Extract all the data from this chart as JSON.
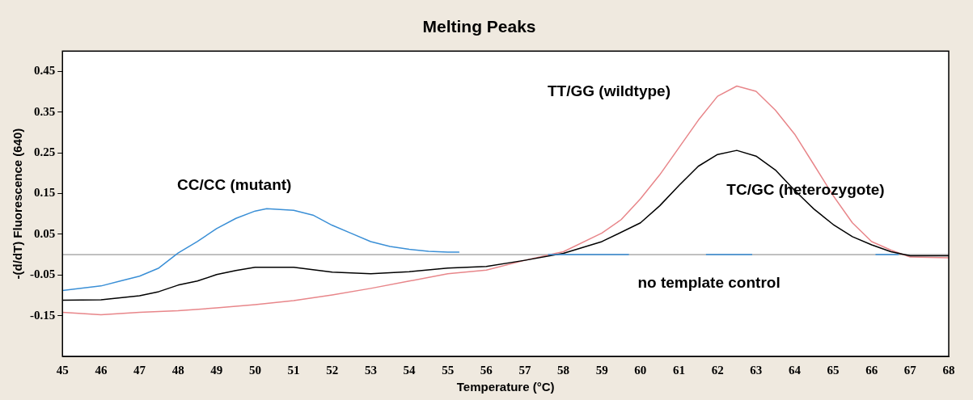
{
  "chart_data": {
    "type": "line",
    "title": "Melting Peaks",
    "xlabel": "Temperature (°C)",
    "ylabel": "-(d/dT) Fluorescence (640)",
    "xlim": [
      45,
      68
    ],
    "xticks": [
      45,
      46,
      47,
      48,
      49,
      50,
      51,
      52,
      53,
      54,
      55,
      56,
      57,
      58,
      59,
      60,
      61,
      62,
      63,
      64,
      65,
      66,
      67,
      68
    ],
    "ylim": [
      -0.25,
      0.5
    ],
    "yticks": [
      {
        "value": 0.45,
        "label": "0.45"
      },
      {
        "value": 0.35,
        "label": "0.35"
      },
      {
        "value": 0.25,
        "label": "0.25"
      },
      {
        "value": 0.15,
        "label": "0.15"
      },
      {
        "value": 0.05,
        "label": "0.05"
      },
      {
        "value": -0.05,
        "label": "-0.05"
      },
      {
        "value": -0.15,
        "label": "-0.15"
      }
    ],
    "grid": false,
    "legend": false,
    "marker": "none",
    "line_style": "solid",
    "ref_lines": [
      {
        "axis": "y",
        "value": 0,
        "color": "#808080"
      }
    ],
    "series": [
      {
        "name": "CC/CC (mutant)",
        "color": "#3a8fd6",
        "x": [
          45,
          46,
          46.5,
          47,
          47.5,
          48,
          48.5,
          49,
          49.5,
          50,
          50.3,
          51,
          51.5,
          52,
          52.5,
          53,
          53.5,
          54,
          54.5,
          55,
          55.3
        ],
        "values": [
          -0.088,
          -0.077,
          -0.065,
          -0.053,
          -0.033,
          0.004,
          0.032,
          0.064,
          0.089,
          0.107,
          0.113,
          0.109,
          0.097,
          0.072,
          0.052,
          0.032,
          0.02,
          0.013,
          0.008,
          0.006,
          0.006
        ]
      },
      {
        "name": "no template control",
        "color": "#3a8fd6",
        "x": [
          57.6,
          59.7,
          60.5,
          61.7,
          62.9,
          64,
          66.1,
          66.7
        ],
        "values": [
          0,
          0,
          null,
          0,
          0,
          null,
          0,
          0
        ]
      },
      {
        "name": "TC/GC (heterozygote)",
        "color": "#000000",
        "x": [
          45,
          46,
          47,
          47.5,
          48,
          48.5,
          49,
          49.5,
          50,
          51,
          52,
          53,
          54,
          55,
          56,
          57,
          58,
          59,
          60,
          60.5,
          61,
          61.5,
          62,
          62.5,
          63,
          63.5,
          64,
          64.5,
          65,
          65.5,
          66,
          66.5,
          67,
          68
        ],
        "values": [
          -0.112,
          -0.111,
          -0.101,
          -0.091,
          -0.075,
          -0.065,
          -0.049,
          -0.039,
          -0.031,
          -0.031,
          -0.043,
          -0.047,
          -0.042,
          -0.033,
          -0.029,
          -0.014,
          0.003,
          0.032,
          0.078,
          0.12,
          0.17,
          0.217,
          0.246,
          0.256,
          0.242,
          0.208,
          0.158,
          0.112,
          0.074,
          0.044,
          0.024,
          0.007,
          -0.003,
          -0.003
        ]
      },
      {
        "name": "TT/GG (wildtype)",
        "color": "#e8868a",
        "x": [
          45,
          46,
          47,
          48,
          49,
          50,
          51,
          52,
          53,
          54,
          55,
          56,
          57,
          57.8,
          58,
          59,
          59.5,
          60,
          60.5,
          61,
          61.5,
          62,
          62.5,
          63,
          63.5,
          64,
          64.5,
          65,
          65.5,
          66,
          66.5,
          67,
          68
        ],
        "values": [
          -0.142,
          -0.148,
          -0.142,
          -0.138,
          -0.131,
          -0.123,
          -0.113,
          -0.099,
          -0.083,
          -0.065,
          -0.047,
          -0.038,
          -0.014,
          0.003,
          0.007,
          0.053,
          0.086,
          0.137,
          0.196,
          0.263,
          0.33,
          0.389,
          0.414,
          0.401,
          0.355,
          0.296,
          0.221,
          0.145,
          0.078,
          0.032,
          0.011,
          -0.006,
          -0.008
        ]
      }
    ]
  }
}
